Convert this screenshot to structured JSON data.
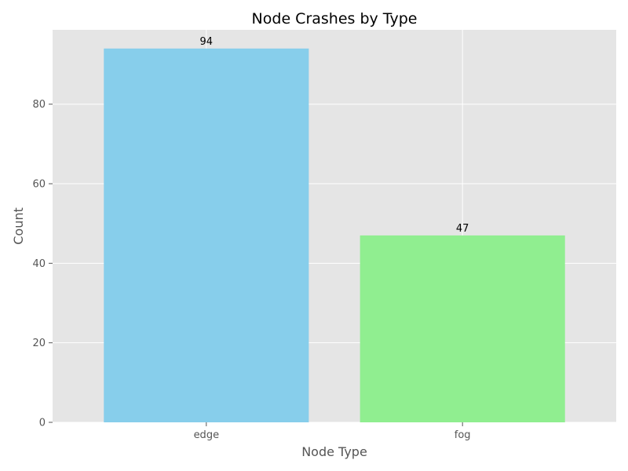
{
  "chart_data": {
    "type": "bar",
    "title": "Node Crashes by Type",
    "xlabel": "Node Type",
    "ylabel": "Count",
    "categories": [
      "edge",
      "fog"
    ],
    "values": [
      94,
      47
    ],
    "data_labels": [
      "94",
      "47"
    ],
    "colors": [
      "#87ceeb",
      "#90ee90"
    ],
    "ylim": [
      0,
      98.7
    ],
    "yticks": [
      0,
      20,
      40,
      60,
      80
    ],
    "ytick_labels": [
      "0",
      "20",
      "40",
      "60",
      "80"
    ],
    "grid": true,
    "background": "#e5e5e5",
    "grid_color": "#ffffff"
  }
}
